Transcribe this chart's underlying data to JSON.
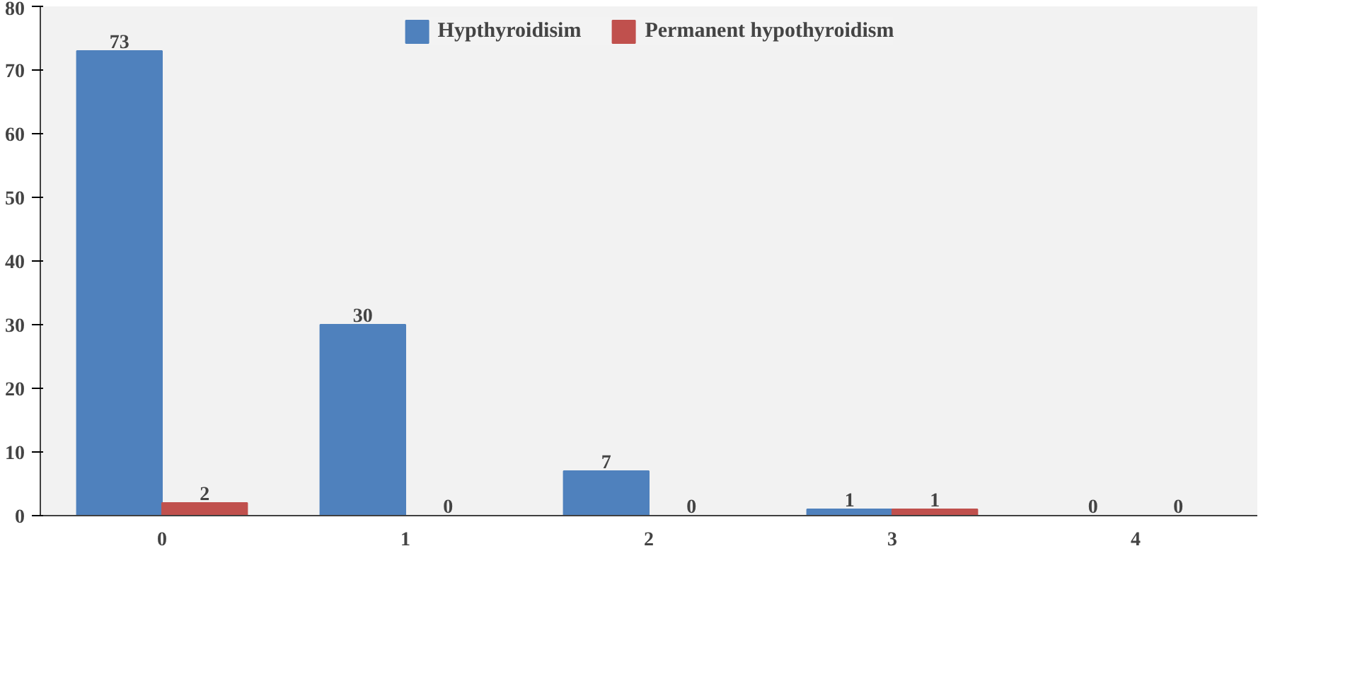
{
  "chart_data": {
    "type": "bar",
    "categories": [
      "0",
      "1",
      "2",
      "3",
      "4"
    ],
    "series": [
      {
        "name": "Hypthyroidisim",
        "color": "#4f81bd",
        "values": [
          73,
          30,
          7,
          1,
          0
        ]
      },
      {
        "name": "Permanent hypothyroidism",
        "color": "#c0504d",
        "values": [
          2,
          0,
          0,
          1,
          0
        ]
      }
    ],
    "ylim": [
      0,
      80
    ],
    "yticks": [
      0,
      10,
      20,
      30,
      40,
      50,
      60,
      70,
      80
    ],
    "data_labels": true,
    "legend": "top",
    "grid": false
  }
}
